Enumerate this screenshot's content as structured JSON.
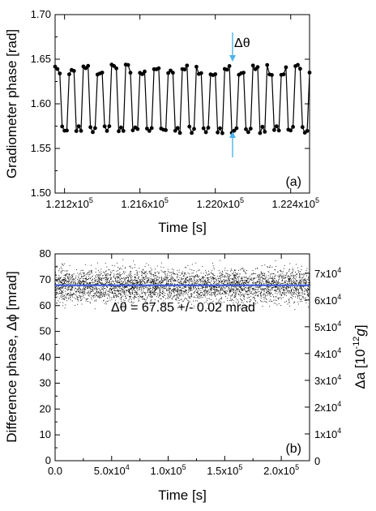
{
  "chart_data": [
    {
      "type": "line",
      "xlabel": "Time [s]",
      "ylabel": "Gradiometer phase [rad]",
      "xlim": [
        121150,
        122500
      ],
      "ylim": [
        1.5,
        1.7
      ],
      "xticks": [
        {
          "value": 121200,
          "mantissa": "1.212x10",
          "exp": "5"
        },
        {
          "value": 121600,
          "mantissa": "1.216x10",
          "exp": "5"
        },
        {
          "value": 122000,
          "mantissa": "1.220x10",
          "exp": "5"
        },
        {
          "value": 122400,
          "mantissa": "1.224x10",
          "exp": "5"
        }
      ],
      "yticks": [
        "1.50",
        "1.55",
        "1.60",
        "1.65",
        "1.70"
      ],
      "panel_label": "(a)",
      "annotation": "Δθ",
      "annotation_color": "#4fb3ea",
      "series": [
        {
          "high_level": 1.638,
          "low_level": 1.571,
          "period_s": 75,
          "points_per_level": 3,
          "marker": "dot",
          "color": "#000000"
        }
      ]
    },
    {
      "type": "scatter",
      "xlabel": "Time [s]",
      "ylabel": "Difference phase, Δϕ [mrad]",
      "y2label_main": "Δa [10",
      "y2label_exp": "-12",
      "y2label_unit": "g",
      "y2label_end": "]",
      "xlim": [
        0,
        225000
      ],
      "ylim": [
        0,
        80
      ],
      "xticks": [
        {
          "value": 0,
          "mantissa": "0.0",
          "exp": ""
        },
        {
          "value": 50000,
          "mantissa": "5.0x10",
          "exp": "4"
        },
        {
          "value": 100000,
          "mantissa": "1.0x10",
          "exp": "5"
        },
        {
          "value": 150000,
          "mantissa": "1.5x10",
          "exp": "5"
        },
        {
          "value": 200000,
          "mantissa": "2.0x10",
          "exp": "5"
        }
      ],
      "yticks": [
        "0",
        "10",
        "20",
        "30",
        "40",
        "50",
        "60",
        "70",
        "80"
      ],
      "y2ticks": [
        {
          "value": 0,
          "mantissa": "0",
          "exp": ""
        },
        {
          "value": 10000,
          "mantissa": "1x10",
          "exp": "4"
        },
        {
          "value": 20000,
          "mantissa": "2x10",
          "exp": "4"
        },
        {
          "value": 30000,
          "mantissa": "3x10",
          "exp": "4"
        },
        {
          "value": 40000,
          "mantissa": "4x10",
          "exp": "4"
        },
        {
          "value": 50000,
          "mantissa": "5x10",
          "exp": "4"
        },
        {
          "value": 60000,
          "mantissa": "6x10",
          "exp": "4"
        },
        {
          "value": 70000,
          "mantissa": "7x10",
          "exp": "4"
        }
      ],
      "y2_per_y": 965,
      "panel_label": "(b)",
      "annotation": "Δθ = 67.85 +/- 0.02 mrad",
      "mean": 67.85,
      "spread": 3.2,
      "fit_color": "#3a5ad8",
      "point_color": "#000000"
    }
  ]
}
